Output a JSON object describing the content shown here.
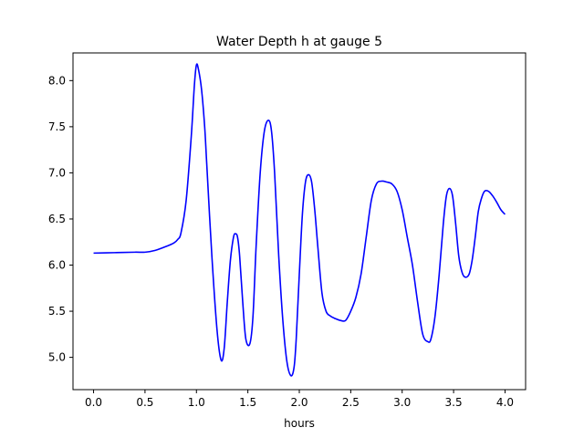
{
  "chart_data": {
    "type": "line",
    "title": "Water Depth h at gauge 5",
    "xlabel": "hours",
    "ylabel": "",
    "xlim": [
      -0.2,
      4.2
    ],
    "ylim": [
      4.65,
      8.3
    ],
    "xticks": [
      0.0,
      0.5,
      1.0,
      1.5,
      2.0,
      2.5,
      3.0,
      3.5,
      4.0
    ],
    "xtick_labels": [
      "0.0",
      "0.5",
      "1.0",
      "1.5",
      "2.0",
      "2.5",
      "3.0",
      "3.5",
      "4.0"
    ],
    "yticks": [
      5.0,
      5.5,
      6.0,
      6.5,
      7.0,
      7.5,
      8.0
    ],
    "ytick_labels": [
      "5.0",
      "5.5",
      "6.0",
      "6.5",
      "7.0",
      "7.5",
      "8.0"
    ],
    "grid": false,
    "series": [
      {
        "color": "#0000ff",
        "x": [
          0.0,
          0.2,
          0.4,
          0.5,
          0.6,
          0.7,
          0.78,
          0.82,
          0.85,
          0.9,
          0.95,
          0.98,
          1.0,
          1.02,
          1.05,
          1.08,
          1.1,
          1.15,
          1.2,
          1.24,
          1.27,
          1.3,
          1.33,
          1.36,
          1.38,
          1.4,
          1.42,
          1.45,
          1.48,
          1.52,
          1.55,
          1.58,
          1.62,
          1.66,
          1.7,
          1.73,
          1.76,
          1.8,
          1.84,
          1.88,
          1.92,
          1.95,
          1.97,
          2.0,
          2.03,
          2.06,
          2.09,
          2.12,
          2.15,
          2.18,
          2.22,
          2.26,
          2.3,
          2.35,
          2.4,
          2.45,
          2.5,
          2.55,
          2.6,
          2.65,
          2.7,
          2.75,
          2.8,
          2.85,
          2.9,
          2.95,
          3.0,
          3.05,
          3.1,
          3.15,
          3.2,
          3.25,
          3.28,
          3.32,
          3.36,
          3.4,
          3.43,
          3.46,
          3.49,
          3.52,
          3.55,
          3.58,
          3.61,
          3.65,
          3.68,
          3.71,
          3.74,
          3.77,
          3.8,
          3.84,
          3.88,
          3.92,
          3.96,
          4.0
        ],
        "y": [
          6.13,
          6.135,
          6.14,
          6.14,
          6.16,
          6.2,
          6.24,
          6.28,
          6.35,
          6.7,
          7.4,
          7.95,
          8.17,
          8.12,
          7.9,
          7.5,
          7.1,
          6.1,
          5.3,
          4.97,
          5.1,
          5.6,
          6.05,
          6.3,
          6.34,
          6.3,
          6.1,
          5.6,
          5.2,
          5.15,
          5.45,
          6.2,
          7.0,
          7.45,
          7.57,
          7.45,
          7.0,
          6.1,
          5.4,
          4.95,
          4.8,
          4.9,
          5.2,
          5.9,
          6.55,
          6.9,
          6.98,
          6.9,
          6.6,
          6.2,
          5.7,
          5.5,
          5.45,
          5.42,
          5.4,
          5.4,
          5.5,
          5.65,
          5.9,
          6.3,
          6.7,
          6.88,
          6.91,
          6.9,
          6.88,
          6.8,
          6.6,
          6.3,
          6.0,
          5.6,
          5.25,
          5.17,
          5.2,
          5.45,
          5.9,
          6.45,
          6.75,
          6.83,
          6.75,
          6.45,
          6.1,
          5.93,
          5.87,
          5.9,
          6.05,
          6.3,
          6.58,
          6.72,
          6.8,
          6.8,
          6.75,
          6.68,
          6.6,
          6.55
        ]
      }
    ]
  }
}
